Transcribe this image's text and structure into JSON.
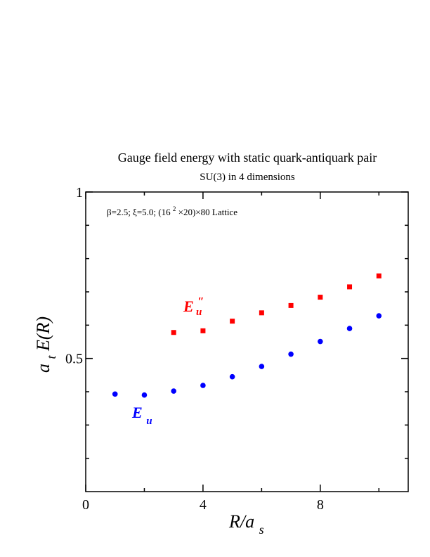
{
  "chart_data": {
    "type": "scatter",
    "title": "Gauge field energy with static quark-antiquark pair",
    "subtitle": "SU(3) in 4 dimensions",
    "annotation": {
      "parts": [
        "β=2.5;  ξ=5.0;  (16",
        "2",
        "×20)×80 Lattice"
      ]
    },
    "xlabel": {
      "main": "R/a",
      "sub": "s"
    },
    "ylabel": {
      "pre": "a",
      "sub": "t",
      "post": "E(R)"
    },
    "xlim": [
      0,
      11
    ],
    "ylim": [
      0.1,
      1.0
    ],
    "xticks": [
      0,
      4,
      8
    ],
    "xtick_labels": [
      "0",
      "4",
      "8"
    ],
    "xminor": [
      2,
      6,
      10
    ],
    "yticks": [
      0.5,
      1.0
    ],
    "ytick_labels": [
      "0.5",
      "1"
    ],
    "yminor": [
      0.2,
      0.3,
      0.4,
      0.6,
      0.7,
      0.8,
      0.9
    ],
    "series": [
      {
        "label_main": "E",
        "label_sub": "u",
        "label_sup": "″",
        "color": "#ff0000",
        "marker": "square",
        "x": [
          3,
          4,
          5,
          6,
          7,
          8,
          9,
          10
        ],
        "y": [
          0.578,
          0.583,
          0.612,
          0.637,
          0.659,
          0.684,
          0.715,
          0.748
        ]
      },
      {
        "label_main": "E",
        "label_sub": "u",
        "color": "#0000ff",
        "marker": "circle",
        "x": [
          1,
          2,
          3,
          4,
          5,
          6,
          7,
          8,
          9,
          10
        ],
        "y": [
          0.393,
          0.39,
          0.402,
          0.419,
          0.445,
          0.476,
          0.513,
          0.551,
          0.59,
          0.628
        ]
      }
    ],
    "grid": false,
    "legend": "none"
  }
}
